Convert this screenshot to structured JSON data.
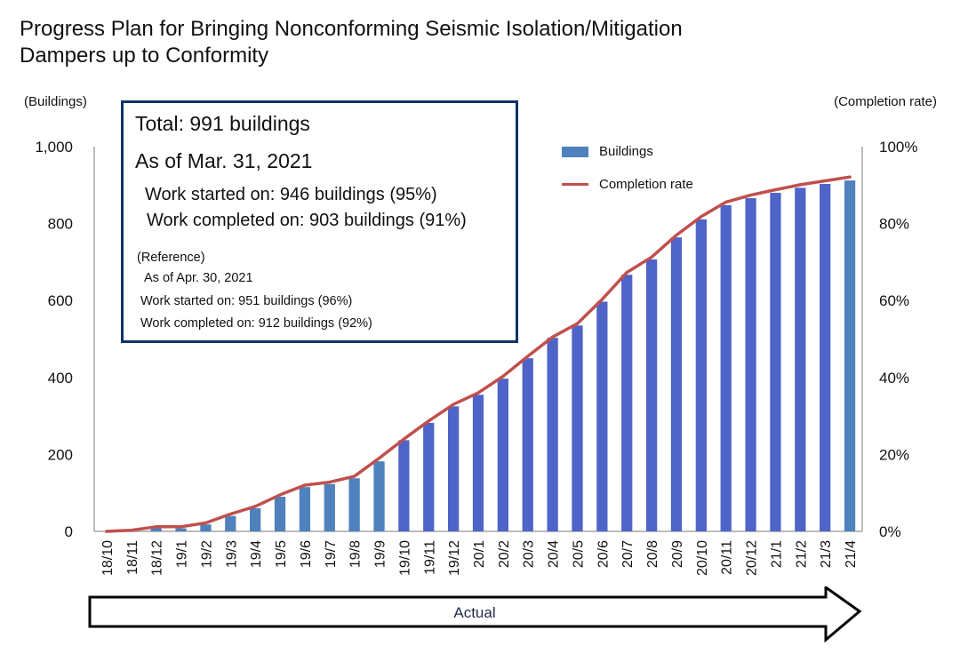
{
  "title_line1": "Progress Plan for Bringing Nonconforming Seismic Isolation/Mitigation",
  "title_line2": "Dampers up to Conformity",
  "infobox": {
    "total": "Total: 991 buildings",
    "as_of": "As of Mar. 31, 2021",
    "started": "Work started on: 946 buildings (95%)",
    "completed": "Work completed on: 903 buildings (91%)",
    "reference_label": "(Reference)",
    "ref_as_of": "As of Apr. 30, 2021",
    "ref_started": "Work started on: 951 buildings (96%)",
    "ref_completed": "Work completed on: 912 buildings (92%)"
  },
  "arrow_label": "Actual",
  "colors": {
    "bar_primary": "#4f64c8",
    "bar_highlight": "#4f81bd",
    "line": "#c0504d",
    "box_border": "#0f3366",
    "axis": "#a6a6a6"
  },
  "chart_data": {
    "type": "bar",
    "title": "Progress Plan for Bringing Nonconforming Seismic Isolation/Mitigation Dampers up to Conformity",
    "xlabel": "",
    "ylabel": "(Buildings)",
    "y2label": "(Completion rate)",
    "ylim": [
      0,
      1000
    ],
    "y2lim": [
      0,
      100
    ],
    "yticks": [
      "0",
      "200",
      "400",
      "600",
      "800",
      "1,000"
    ],
    "y2ticks": [
      "0%",
      "20%",
      "40%",
      "60%",
      "80%",
      "100%"
    ],
    "grid": false,
    "legend": {
      "placement": "top-right",
      "entries": [
        "Buildings",
        "Completion rate"
      ]
    },
    "categories": [
      "18/10",
      "18/11",
      "18/12",
      "19/1",
      "19/2",
      "19/3",
      "19/4",
      "19/5",
      "19/6",
      "19/7",
      "19/8",
      "19/9",
      "19/10",
      "19/11",
      "19/12",
      "20/1",
      "20/2",
      "20/3",
      "20/4",
      "20/5",
      "20/6",
      "20/7",
      "20/8",
      "20/9",
      "20/10",
      "20/11",
      "20/12",
      "21/1",
      "21/2",
      "21/3",
      "21/4"
    ],
    "highlight_categories": [
      "18/10",
      "18/11",
      "18/12",
      "19/1",
      "19/2",
      "19/3",
      "19/4",
      "19/5",
      "19/6",
      "19/7",
      "19/8",
      "19/9",
      "21/4"
    ],
    "series": [
      {
        "name": "Buildings",
        "type": "bar",
        "axis": "left",
        "values": [
          0,
          1,
          8,
          8,
          18,
          40,
          60,
          90,
          115,
          123,
          138,
          182,
          237,
          282,
          325,
          355,
          397,
          450,
          503,
          535,
          597,
          667,
          707,
          764,
          811,
          848,
          866,
          880,
          893,
          903,
          912
        ]
      },
      {
        "name": "Completion rate",
        "type": "line",
        "axis": "right",
        "unit": "%",
        "values": [
          0,
          0.3,
          1.2,
          1.2,
          2.2,
          4.5,
          6.5,
          9.5,
          12,
          12.8,
          14.3,
          19,
          24,
          28.7,
          33,
          36,
          40.3,
          45.5,
          50.5,
          54,
          60.3,
          67.3,
          71.3,
          77,
          81.8,
          85.6,
          87.4,
          88.8,
          90.1,
          91.1,
          92.1
        ]
      }
    ]
  }
}
